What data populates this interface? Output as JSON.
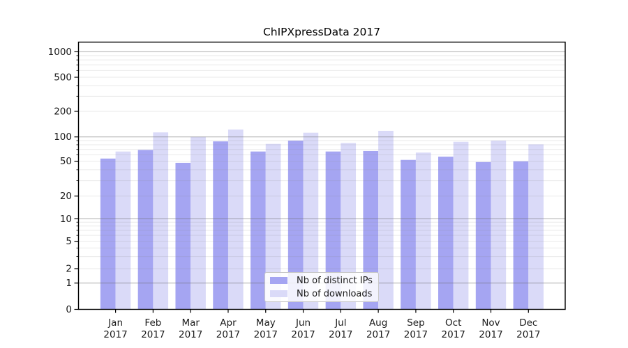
{
  "chart_data": {
    "type": "bar",
    "title": "ChIPXpressData 2017",
    "categories": [
      "Jan",
      "Feb",
      "Mar",
      "Apr",
      "May",
      "Jun",
      "Jul",
      "Aug",
      "Sep",
      "Oct",
      "Nov",
      "Dec"
    ],
    "category_year": "2017",
    "series": [
      {
        "name": "Nb of distinct IPs",
        "color": "#a5a5f2",
        "values": [
          54,
          69,
          48,
          88,
          66,
          90,
          66,
          67,
          52,
          57,
          49,
          50
        ]
      },
      {
        "name": "Nb of downloads",
        "color": "#dadaf8",
        "values": [
          66,
          113,
          100,
          122,
          82,
          112,
          84,
          118,
          64,
          87,
          90,
          81
        ]
      }
    ],
    "y_ticks": [
      0,
      1,
      2,
      5,
      10,
      20,
      50,
      100,
      200,
      500,
      1000
    ],
    "ylim": [
      0,
      1000
    ],
    "y_scale": "log-like with linear 0-1 segment",
    "xlabel": "",
    "ylabel": "",
    "grid": "horizontal, major at powers of 10, minor at 2-9 multiples",
    "legend_position": "inside bottom-center",
    "colors": {
      "axis": "#000000",
      "grid_major": "#a8a8a8",
      "grid_minor": "#e9e9e9",
      "background": "#ffffff"
    }
  }
}
